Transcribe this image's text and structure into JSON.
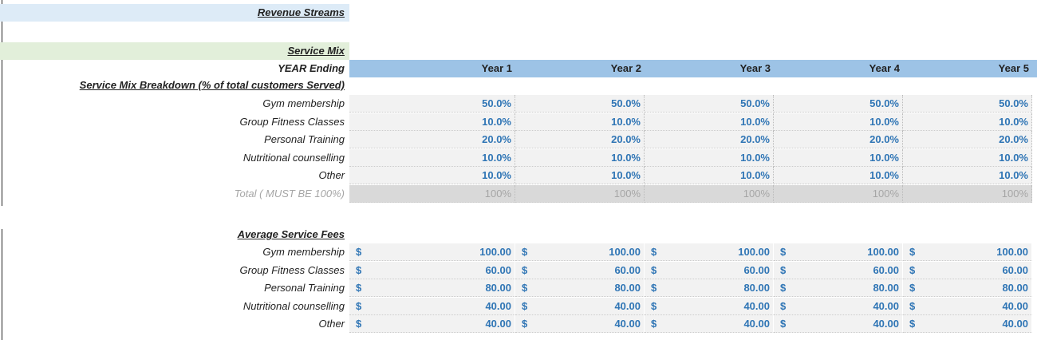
{
  "header": {
    "title": "Revenue Streams"
  },
  "service_mix": {
    "title": "Service Mix",
    "year_label": "YEAR Ending",
    "years": [
      "Year 1",
      "Year 2",
      "Year 3",
      "Year 4",
      "Year 5"
    ],
    "breakdown_title": "Service Mix Breakdown (% of total customers Served)",
    "rows": [
      {
        "label": "Gym membership",
        "values": [
          "50.0%",
          "50.0%",
          "50.0%",
          "50.0%",
          "50.0%"
        ]
      },
      {
        "label": "Group Fitness Classes",
        "values": [
          "10.0%",
          "10.0%",
          "10.0%",
          "10.0%",
          "10.0%"
        ]
      },
      {
        "label": "Personal Training",
        "values": [
          "20.0%",
          "20.0%",
          "20.0%",
          "20.0%",
          "20.0%"
        ]
      },
      {
        "label": "Nutritional counselling",
        "values": [
          "10.0%",
          "10.0%",
          "10.0%",
          "10.0%",
          "10.0%"
        ]
      },
      {
        "label": "Other",
        "values": [
          "10.0%",
          "10.0%",
          "10.0%",
          "10.0%",
          "10.0%"
        ]
      }
    ],
    "total": {
      "label": "Total ( MUST BE 100%)",
      "values": [
        "100%",
        "100%",
        "100%",
        "100%",
        "100%"
      ]
    }
  },
  "fees": {
    "title": "Average Service Fees",
    "currency": "$",
    "rows": [
      {
        "label": "Gym membership",
        "values": [
          "100.00",
          "100.00",
          "100.00",
          "100.00",
          "100.00"
        ]
      },
      {
        "label": "Group Fitness Classes",
        "values": [
          "60.00",
          "60.00",
          "60.00",
          "60.00",
          "60.00"
        ]
      },
      {
        "label": "Personal Training",
        "values": [
          "80.00",
          "80.00",
          "80.00",
          "80.00",
          "80.00"
        ]
      },
      {
        "label": "Nutritional counselling",
        "values": [
          "40.00",
          "40.00",
          "40.00",
          "40.00",
          "40.00"
        ]
      },
      {
        "label": "Other",
        "values": [
          "40.00",
          "40.00",
          "40.00",
          "40.00",
          "40.00"
        ]
      }
    ]
  }
}
